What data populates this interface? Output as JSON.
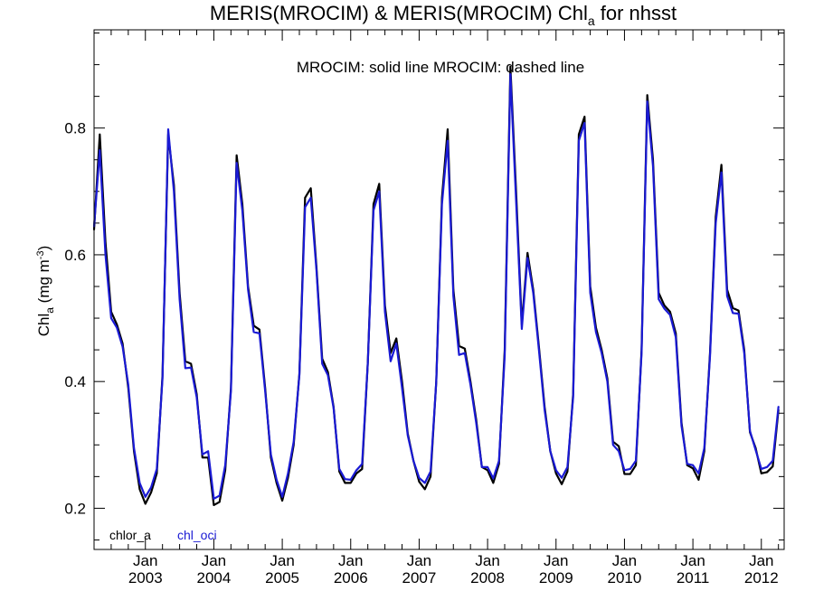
{
  "chart_data": {
    "type": "line",
    "title_main": "MERIS(MROCIM) & MERIS(MROCIM)  Chl",
    "title_sub": "a",
    "title_tail": " for nhsst",
    "annotation": "MROCIM: solid line   MROCIM: dashed line",
    "ylabel_main": "Chl",
    "ylabel_sub": "a",
    "ylabel_units": " (mg m",
    "ylabel_sup": "-3",
    "ylabel_close": ")",
    "ylim": [
      0.135,
      0.955
    ],
    "yticks": [
      0.2,
      0.4,
      0.6,
      0.8
    ],
    "ytick_labels": [
      "0.2",
      "0.4",
      "0.6",
      "0.8"
    ],
    "xlim": [
      "2002-04-01",
      "2012-05-01"
    ],
    "xticks": [
      "2003-01",
      "2004-01",
      "2005-01",
      "2006-01",
      "2007-01",
      "2008-01",
      "2009-01",
      "2010-01",
      "2011-01",
      "2012-01"
    ],
    "xtick_month": "Jan",
    "xtick_years": [
      "2003",
      "2004",
      "2005",
      "2006",
      "2007",
      "2008",
      "2009",
      "2010",
      "2011",
      "2012"
    ],
    "grid": false,
    "legend": "bottom-left",
    "x": [
      "2002-04",
      "2002-05",
      "2002-06",
      "2002-07",
      "2002-08",
      "2002-09",
      "2002-10",
      "2002-11",
      "2002-12",
      "2003-01",
      "2003-02",
      "2003-03",
      "2003-04",
      "2003-05",
      "2003-06",
      "2003-07",
      "2003-08",
      "2003-09",
      "2003-10",
      "2003-11",
      "2003-12",
      "2004-01",
      "2004-02",
      "2004-03",
      "2004-04",
      "2004-05",
      "2004-06",
      "2004-07",
      "2004-08",
      "2004-09",
      "2004-10",
      "2004-11",
      "2004-12",
      "2005-01",
      "2005-02",
      "2005-03",
      "2005-04",
      "2005-05",
      "2005-06",
      "2005-07",
      "2005-08",
      "2005-09",
      "2005-10",
      "2005-11",
      "2005-12",
      "2006-01",
      "2006-02",
      "2006-03",
      "2006-04",
      "2006-05",
      "2006-06",
      "2006-07",
      "2006-08",
      "2006-09",
      "2006-10",
      "2006-11",
      "2006-12",
      "2007-01",
      "2007-02",
      "2007-03",
      "2007-04",
      "2007-05",
      "2007-06",
      "2007-07",
      "2007-08",
      "2007-09",
      "2007-10",
      "2007-11",
      "2007-12",
      "2008-01",
      "2008-02",
      "2008-03",
      "2008-04",
      "2008-05",
      "2008-06",
      "2008-07",
      "2008-08",
      "2008-09",
      "2008-10",
      "2008-11",
      "2008-12",
      "2009-01",
      "2009-02",
      "2009-03",
      "2009-04",
      "2009-05",
      "2009-06",
      "2009-07",
      "2009-08",
      "2009-09",
      "2009-10",
      "2009-11",
      "2009-12",
      "2010-01",
      "2010-02",
      "2010-03",
      "2010-04",
      "2010-05",
      "2010-06",
      "2010-07",
      "2010-08",
      "2010-09",
      "2010-10",
      "2010-11",
      "2010-12",
      "2011-01",
      "2011-02",
      "2011-03",
      "2011-04",
      "2011-05",
      "2011-06",
      "2011-07",
      "2011-08",
      "2011-09",
      "2011-10",
      "2011-11",
      "2011-12",
      "2012-01",
      "2012-02",
      "2012-03",
      "2012-04"
    ],
    "series": [
      {
        "name": "chlor_a",
        "color": "#000000",
        "values": [
          0.64,
          0.79,
          0.62,
          0.51,
          0.49,
          0.46,
          0.39,
          0.29,
          0.23,
          0.207,
          0.225,
          0.255,
          0.41,
          0.79,
          0.71,
          0.54,
          0.432,
          0.428,
          0.38,
          0.28,
          0.28,
          0.205,
          0.21,
          0.26,
          0.39,
          0.757,
          0.68,
          0.55,
          0.488,
          0.482,
          0.39,
          0.28,
          0.24,
          0.212,
          0.248,
          0.3,
          0.412,
          0.69,
          0.705,
          0.58,
          0.436,
          0.415,
          0.36,
          0.258,
          0.24,
          0.24,
          0.255,
          0.262,
          0.43,
          0.68,
          0.712,
          0.52,
          0.445,
          0.468,
          0.4,
          0.318,
          0.275,
          0.242,
          0.23,
          0.25,
          0.4,
          0.69,
          0.798,
          0.545,
          0.456,
          0.452,
          0.4,
          0.34,
          0.265,
          0.26,
          0.24,
          0.27,
          0.45,
          0.897,
          0.7,
          0.49,
          0.603,
          0.545,
          0.455,
          0.36,
          0.29,
          0.255,
          0.238,
          0.258,
          0.38,
          0.79,
          0.818,
          0.55,
          0.485,
          0.45,
          0.405,
          0.305,
          0.298,
          0.254,
          0.254,
          0.268,
          0.45,
          0.852,
          0.75,
          0.54,
          0.52,
          0.51,
          0.476,
          0.335,
          0.268,
          0.263,
          0.245,
          0.29,
          0.445,
          0.66,
          0.742,
          0.545,
          0.516,
          0.512,
          0.45,
          0.32,
          0.295,
          0.255,
          0.257,
          0.266,
          0.355
        ]
      },
      {
        "name": "chl_oci",
        "color": "#1a1ad4",
        "values": [
          0.645,
          0.765,
          0.6,
          0.5,
          0.485,
          0.455,
          0.395,
          0.295,
          0.24,
          0.218,
          0.233,
          0.262,
          0.405,
          0.798,
          0.7,
          0.53,
          0.421,
          0.422,
          0.375,
          0.285,
          0.29,
          0.215,
          0.22,
          0.268,
          0.385,
          0.745,
          0.67,
          0.545,
          0.478,
          0.476,
          0.385,
          0.285,
          0.245,
          0.218,
          0.255,
          0.305,
          0.41,
          0.675,
          0.69,
          0.575,
          0.428,
          0.41,
          0.358,
          0.262,
          0.246,
          0.245,
          0.26,
          0.27,
          0.43,
          0.67,
          0.7,
          0.51,
          0.432,
          0.46,
          0.39,
          0.315,
          0.275,
          0.248,
          0.24,
          0.258,
          0.4,
          0.68,
          0.78,
          0.535,
          0.442,
          0.445,
          0.395,
          0.335,
          0.265,
          0.265,
          0.247,
          0.275,
          0.44,
          0.885,
          0.685,
          0.483,
          0.595,
          0.54,
          0.45,
          0.355,
          0.29,
          0.26,
          0.248,
          0.265,
          0.375,
          0.78,
          0.808,
          0.54,
          0.478,
          0.445,
          0.4,
          0.3,
          0.29,
          0.26,
          0.262,
          0.275,
          0.445,
          0.842,
          0.74,
          0.53,
          0.515,
          0.505,
          0.47,
          0.33,
          0.27,
          0.268,
          0.255,
          0.295,
          0.44,
          0.65,
          0.73,
          0.535,
          0.508,
          0.507,
          0.445,
          0.322,
          0.292,
          0.262,
          0.265,
          0.275,
          0.36
        ]
      }
    ]
  }
}
